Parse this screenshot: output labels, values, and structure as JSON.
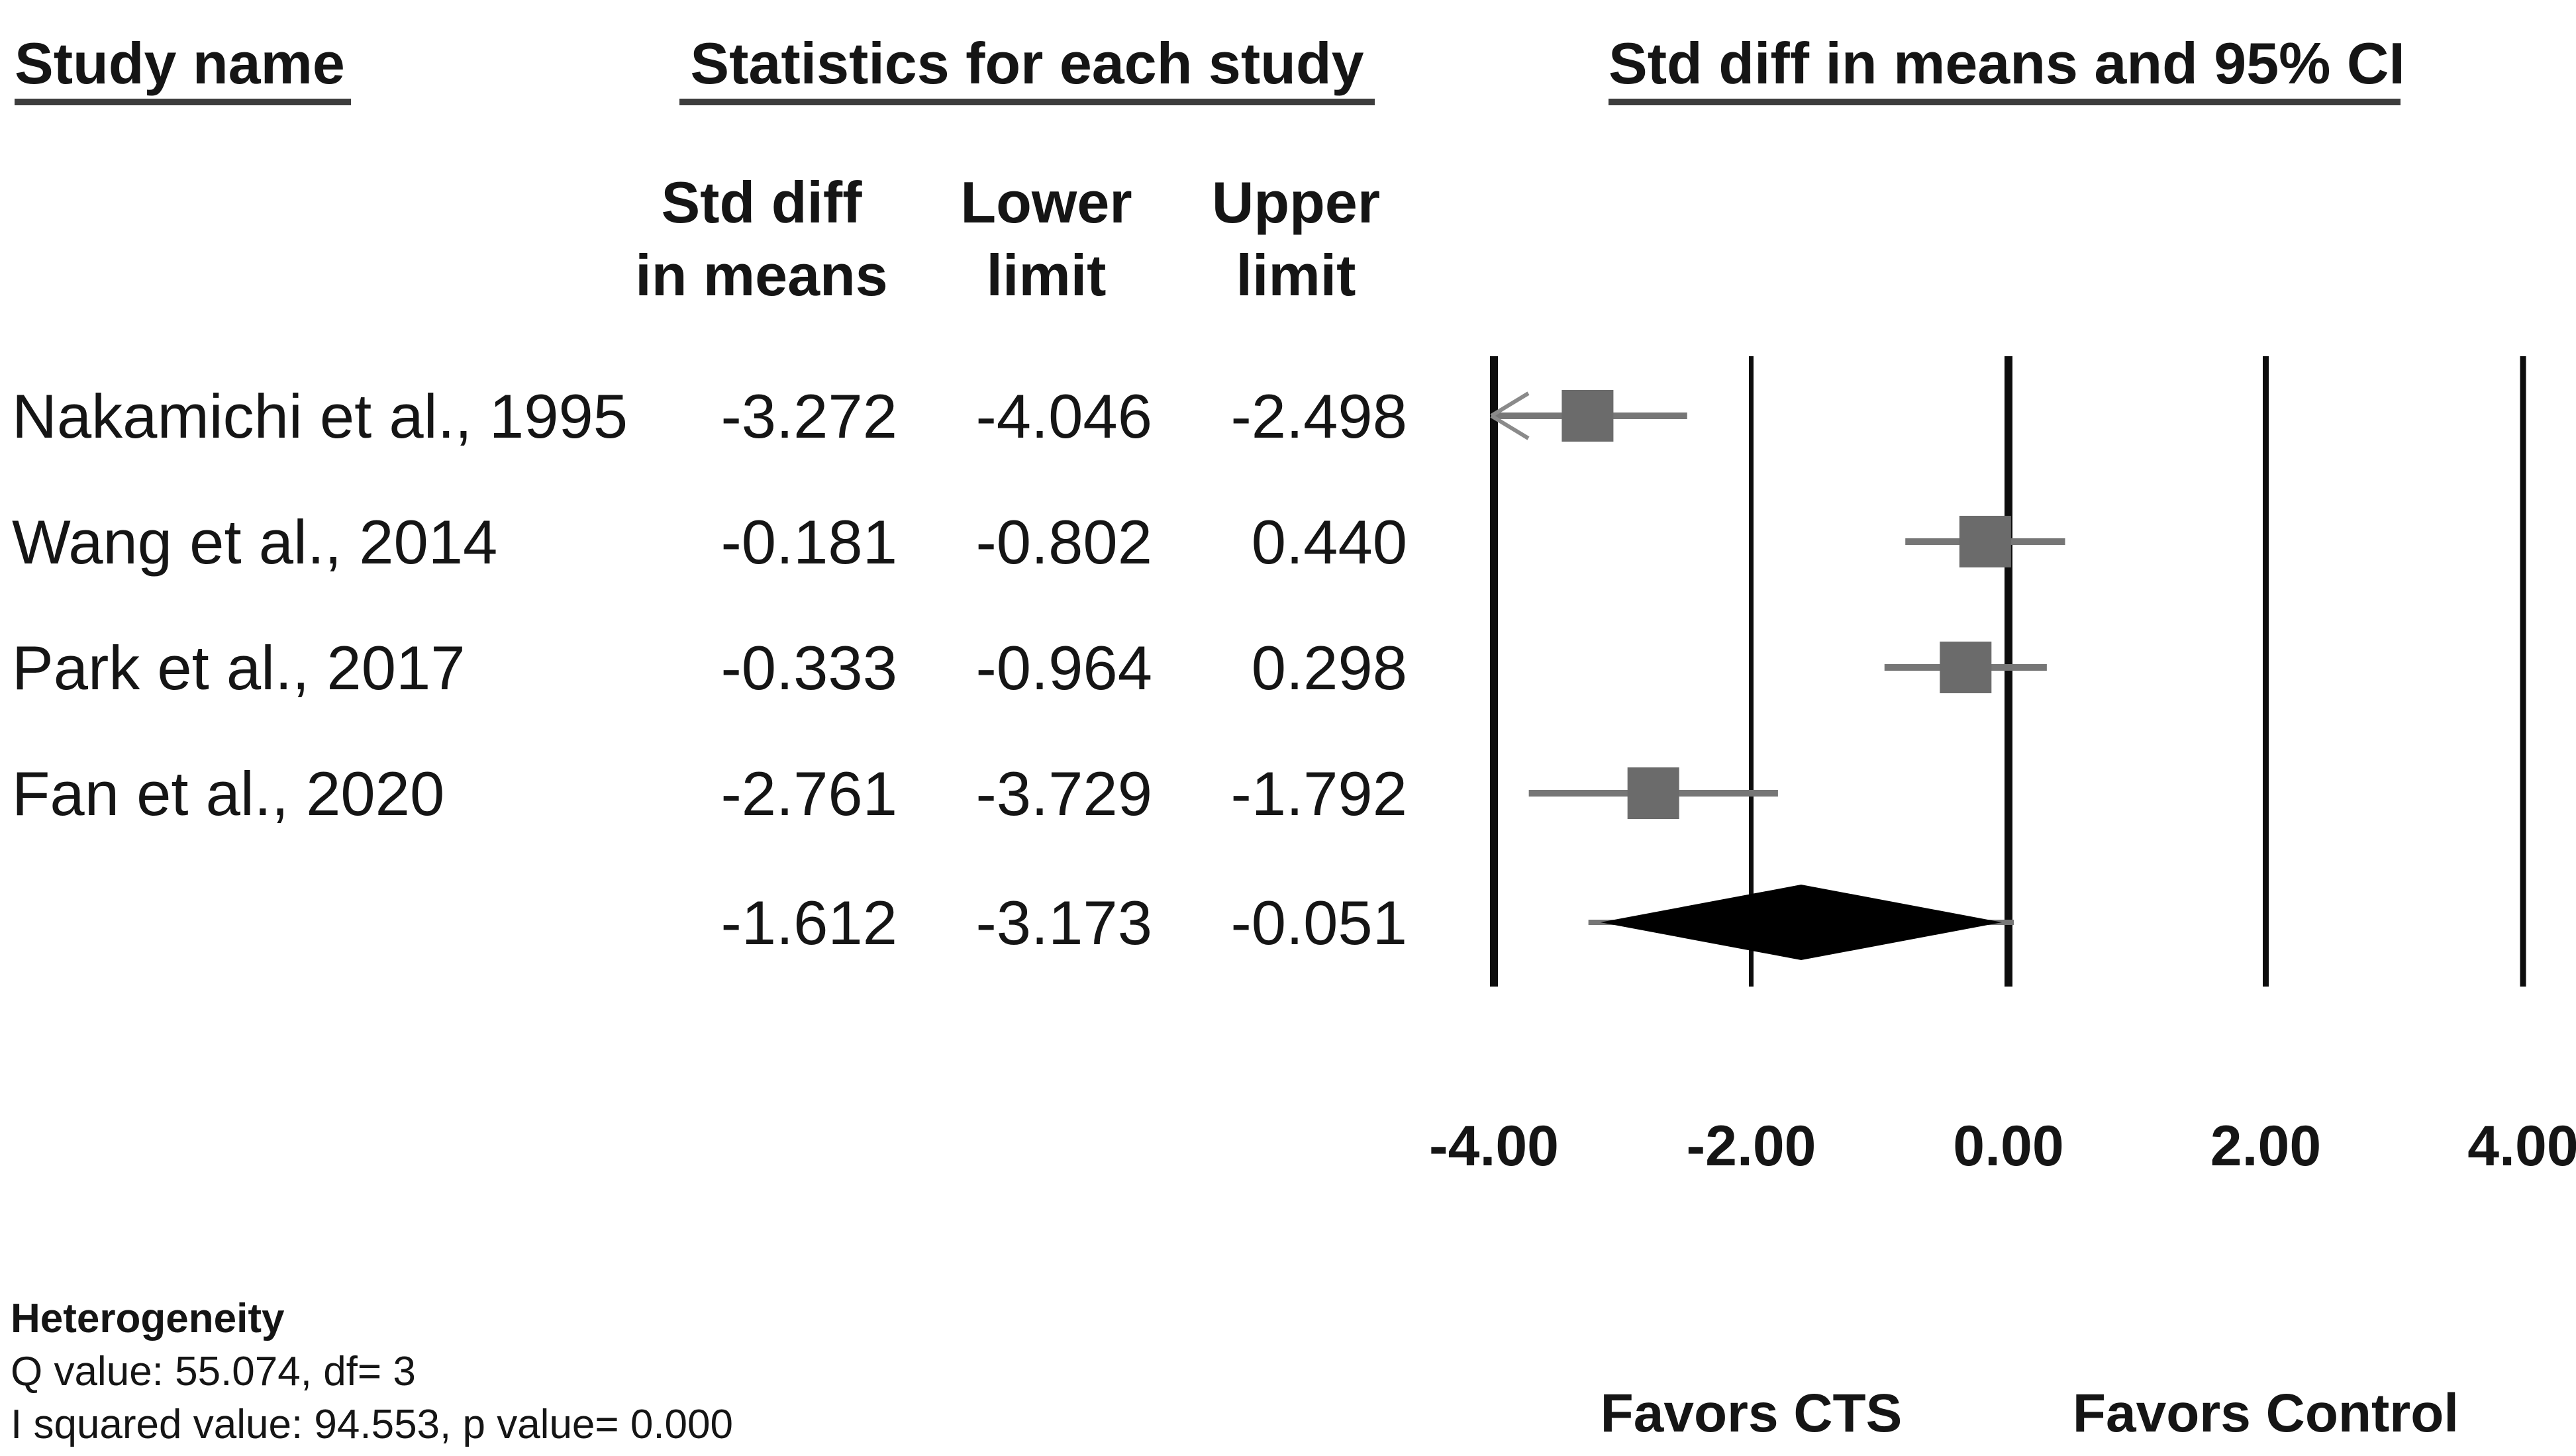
{
  "headers": {
    "study": "Study name",
    "stats": "Statistics for each study",
    "ci": "Std diff in means and 95% CI"
  },
  "columns": {
    "col1_line1": "Std diff",
    "col1_line2": "in means",
    "col2_line1": "Lower",
    "col2_line2": "limit",
    "col3_line1": "Upper",
    "col3_line2": "limit"
  },
  "heterogeneity": {
    "title": "Heterogeneity",
    "q_line": "Q value: 55.074, df= 3",
    "i2_line": "I squared value: 94.553, p value= 0.000"
  },
  "colors": {
    "marker_gray": "#6b6b6b",
    "whisker_gray": "#767676",
    "arrow_gray": "#8a8a8a",
    "axis_line_black": "#0d0d0d",
    "diamond_black": "#000000",
    "underline_gray": "#3d3d3d"
  },
  "chart_data": {
    "type": "forest",
    "title": "Std diff in means and 95% CI",
    "effect_measure": "Std diff in means",
    "studies": [
      {
        "name": "Nakamichi et al., 1995",
        "std_diff": -3.272,
        "lower": -4.046,
        "upper": -2.498
      },
      {
        "name": "Wang et al., 2014",
        "std_diff": -0.181,
        "lower": -0.802,
        "upper": 0.44
      },
      {
        "name": "Park et al., 2017",
        "std_diff": -0.333,
        "lower": -0.964,
        "upper": 0.298
      },
      {
        "name": "Fan et al., 2020",
        "std_diff": -2.761,
        "lower": -3.729,
        "upper": -1.792
      }
    ],
    "summary": {
      "std_diff": -1.612,
      "lower": -3.173,
      "upper": -0.051
    },
    "axis": {
      "ticks": [
        -4,
        -2,
        0,
        2,
        4
      ],
      "tick_labels": [
        "-4.00",
        "-2.00",
        "0.00",
        "2.00",
        "4.00"
      ],
      "xlim": [
        -4,
        4
      ],
      "grid": "vertical-reference-lines"
    },
    "favors_left": "Favors CTS",
    "favors_right": "Favors Control",
    "decimals": 3
  }
}
